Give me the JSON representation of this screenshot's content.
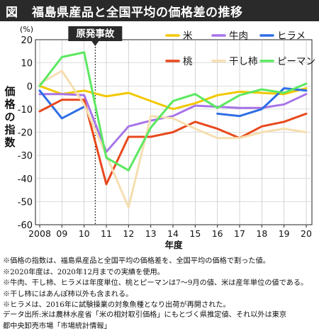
{
  "header": {
    "figure_label": "図",
    "title": "福島県産品と全国平均の価格差の推移"
  },
  "chart_data": {
    "type": "line",
    "unit_label": "(%)",
    "ylabel": "価格の指数",
    "xlabel": "年度",
    "ylim": [
      -60,
      20
    ],
    "yticks": [
      20,
      10,
      0,
      -10,
      -20,
      -30,
      -40,
      -50,
      -60
    ],
    "x": [
      2008,
      2009,
      2010,
      2011,
      2012,
      2013,
      2014,
      2015,
      2016,
      2017,
      2018,
      2019,
      2020
    ],
    "xtick_labels": [
      "2008",
      "09",
      "10",
      "11",
      "12",
      "13",
      "14",
      "15",
      "16",
      "17",
      "18",
      "19",
      "20"
    ],
    "event": {
      "x": 2010.5,
      "label": "原発事故"
    },
    "grid": true,
    "legend_position": "top-right",
    "series": [
      {
        "name": "米",
        "color": "#f2c800",
        "values": [
          0,
          -3.5,
          -2,
          -4.5,
          -3,
          -6.5,
          -10,
          -7.5,
          -4,
          -2.5,
          -3,
          -3.5,
          -1
        ]
      },
      {
        "name": "牛肉",
        "color": "#a774e8",
        "values": [
          -3.5,
          -3.5,
          -4,
          -28.5,
          -17.5,
          -15,
          -13,
          -8.5,
          -9,
          -9.5,
          -9.5,
          -8,
          -3.5
        ]
      },
      {
        "name": "ヒラメ",
        "color": "#2e6ee6",
        "values": [
          -2,
          -14,
          -9,
          null,
          null,
          null,
          null,
          null,
          -12,
          -13,
          -10,
          -1,
          -2
        ]
      },
      {
        "name": "桃",
        "color": "#e8481c",
        "values": [
          -11,
          -6,
          -6,
          -42.5,
          -22,
          -22,
          -20,
          -15.5,
          -18.5,
          -22.5,
          -17.5,
          -15.5,
          -12
        ]
      },
      {
        "name": "干し柿",
        "color": "#f5deb0",
        "values": [
          1,
          6.5,
          -8,
          -30,
          -52.5,
          -13,
          -14,
          -18.5,
          -22.5,
          -22.5,
          -20,
          -18.5,
          -20
        ]
      },
      {
        "name": "ピーマン",
        "color": "#5ce860",
        "values": [
          0,
          12.5,
          14.5,
          -31,
          -36.5,
          -18,
          -6.5,
          -3.5,
          -9.5,
          -4,
          -1.5,
          -3,
          1
        ]
      }
    ]
  },
  "notes": [
    "※価格の指数は、福島県産品と全国平均の価格差を、全国平均の価格で割った値。",
    "※2020年度は、2020年12月までの実績を使用。",
    "※牛肉、干し柿、ヒラメは年度単位、桃とピーマンは7～9月の値、米は産年単位の値である。",
    "※干し柿にはあんぽ柿以外も含まれる。",
    "※ヒラメは、2016年に試験操業の対象魚種となり出荷が再開された。"
  ],
  "source": [
    "データ出所:米は農林水産省「米の相対取引価格」にもとづく県推定値、それ以外は東京",
    "都中央卸売市場「市場統計情報」"
  ]
}
